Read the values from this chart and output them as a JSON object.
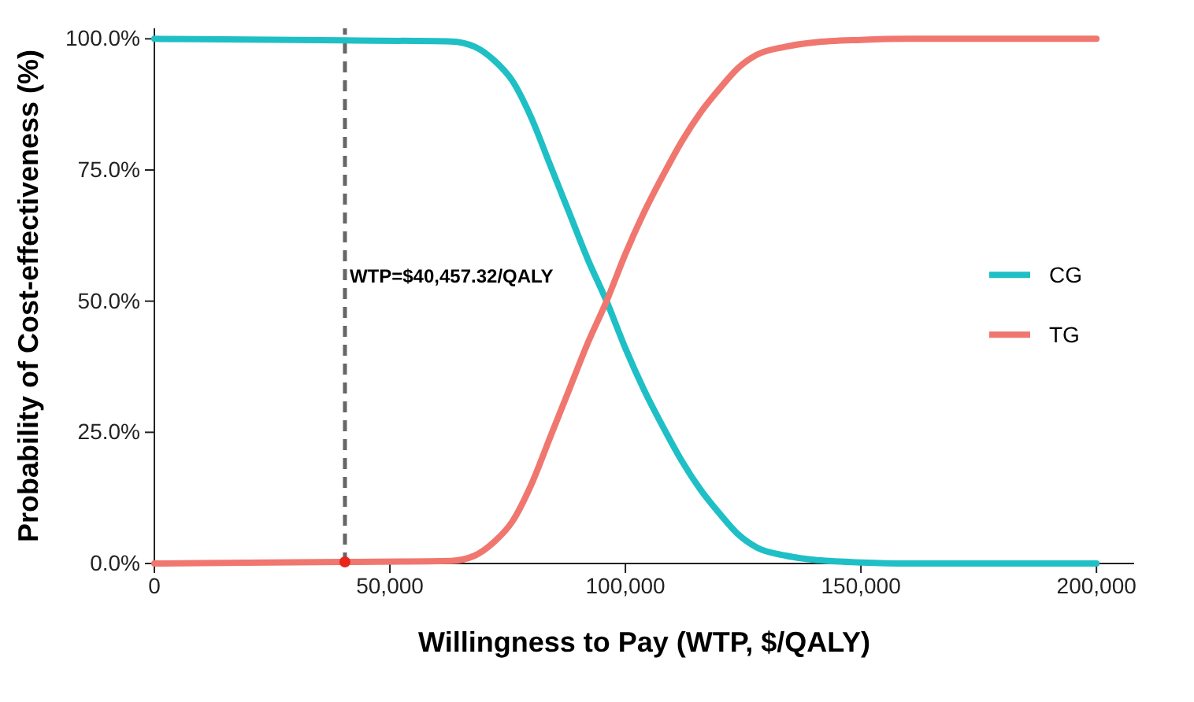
{
  "chart_data": {
    "type": "line",
    "xlabel": "Willingness to Pay (WTP, $/QALY)",
    "ylabel": "Probability of Cost-effectiveness (%)",
    "xlim": [
      0,
      208000
    ],
    "xticks": [
      {
        "value": 0,
        "label": "0"
      },
      {
        "value": 50000,
        "label": "50,000"
      },
      {
        "value": 100000,
        "label": "100,000"
      },
      {
        "value": 150000,
        "label": "150,000"
      },
      {
        "value": 200000,
        "label": "200,000"
      }
    ],
    "ylim": [
      0,
      102
    ],
    "yticks": [
      {
        "value": 0,
        "label": "0.0%"
      },
      {
        "value": 25,
        "label": "25.0%"
      },
      {
        "value": 50,
        "label": "50.0%"
      },
      {
        "value": 75,
        "label": "75.0%"
      },
      {
        "value": 100,
        "label": "100.0%"
      }
    ],
    "x": [
      0,
      40000,
      63000,
      68000,
      72000,
      76000,
      80000,
      84000,
      88000,
      92000,
      96000,
      100000,
      104000,
      108000,
      112000,
      116000,
      120000,
      124000,
      128000,
      134000,
      140000,
      150000,
      160000,
      200000
    ],
    "series": [
      {
        "name": "CG",
        "color": "#1fbfc6",
        "values": [
          100,
          99.7,
          99.5,
          98.5,
          96,
          92,
          85,
          76,
          67,
          58,
          50,
          41,
          33,
          26,
          19.5,
          14,
          9.5,
          5.5,
          3,
          1.5,
          0.7,
          0.2,
          0,
          0
        ]
      },
      {
        "name": "TG",
        "color": "#f0776f",
        "values": [
          0,
          0.3,
          0.5,
          1.5,
          4,
          8,
          15,
          24,
          33,
          42,
          50,
          59,
          67,
          74,
          80.5,
          86,
          90.5,
          94.5,
          97,
          98.5,
          99.3,
          99.8,
          100,
          100
        ]
      },
      {
        "type": "scatter",
        "color": "#e8261c",
        "x": [
          40457.32
        ],
        "values": [
          0.3
        ]
      }
    ],
    "ref_lines": [
      {
        "axis": "x",
        "value": 40457.32,
        "label": "WTP=$40,457.32/QALY",
        "color": "#666666",
        "line_style": "dashed"
      }
    ],
    "legend": "right",
    "grid": false
  }
}
